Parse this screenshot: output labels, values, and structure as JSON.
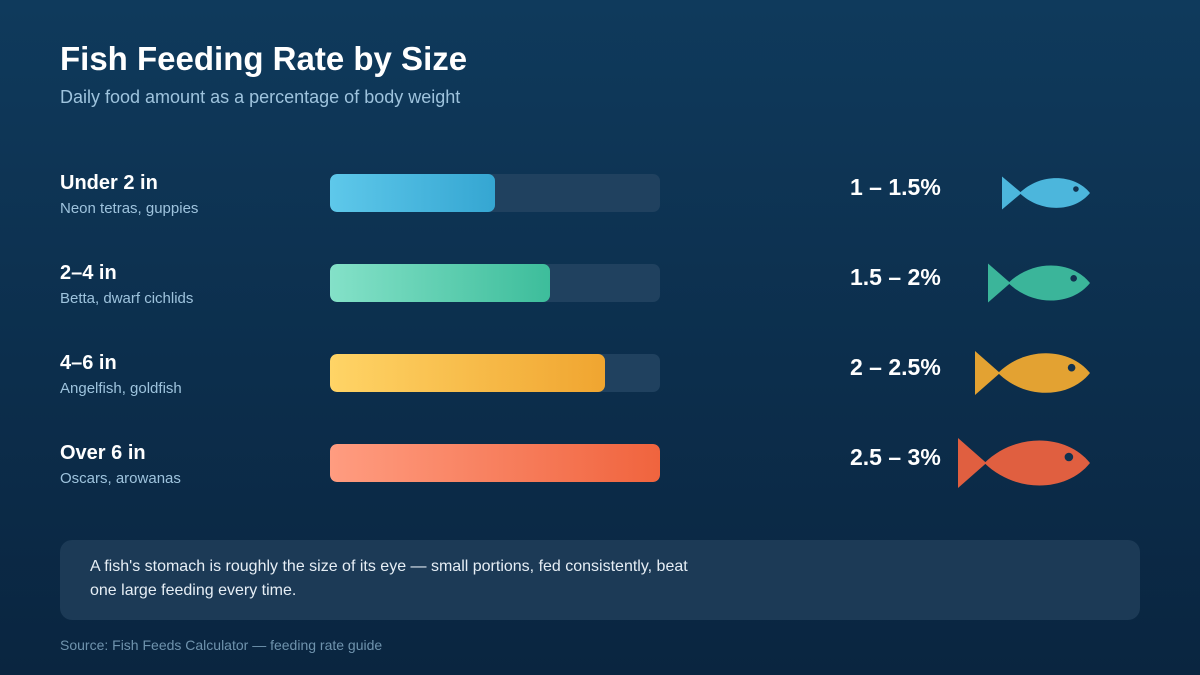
{
  "title": "Fish Feeding Rate by Size",
  "subtitle": "Daily food amount as a percentage of body weight",
  "note": "A fish's stomach is roughly the size of its eye — small portions, fed consistently, beat one large feeding every time.",
  "source": "Source: Fish Feeds Calculator — feeding rate guide",
  "chart_data": {
    "type": "bar",
    "orientation": "horizontal",
    "title": "Fish Feeding Rate by Size",
    "subtitle": "Daily food amount as a percentage of body weight",
    "unit": "% of body weight per day",
    "xlim": [
      0,
      3
    ],
    "grid": false,
    "legend": "none",
    "categories": [
      "Under 2 in",
      "2–4 in",
      "4–6 in",
      "Over 6 in"
    ],
    "examples": [
      "Neon tetras, guppies",
      "Betta, dwarf cichlids",
      "Angelfish, goldfish",
      "Oscars, arowanas"
    ],
    "values": [
      1.5,
      2,
      2.5,
      3
    ],
    "value_labels": [
      "1 – 1.5%",
      "1.5 – 2%",
      "2 – 2.5%",
      "2.5 – 3%"
    ],
    "colors": [
      [
        "#5ec8ea",
        "#35a6d2"
      ],
      [
        "#84e1c8",
        "#3dbd9b"
      ],
      [
        "#ffd466",
        "#f0a530"
      ],
      [
        "#ff9c80",
        "#f0643e"
      ]
    ],
    "icon_colors": [
      "#4cb6dc",
      "#3bb59a",
      "#e3a232",
      "#e05f40"
    ],
    "icon": "fish-icon"
  }
}
